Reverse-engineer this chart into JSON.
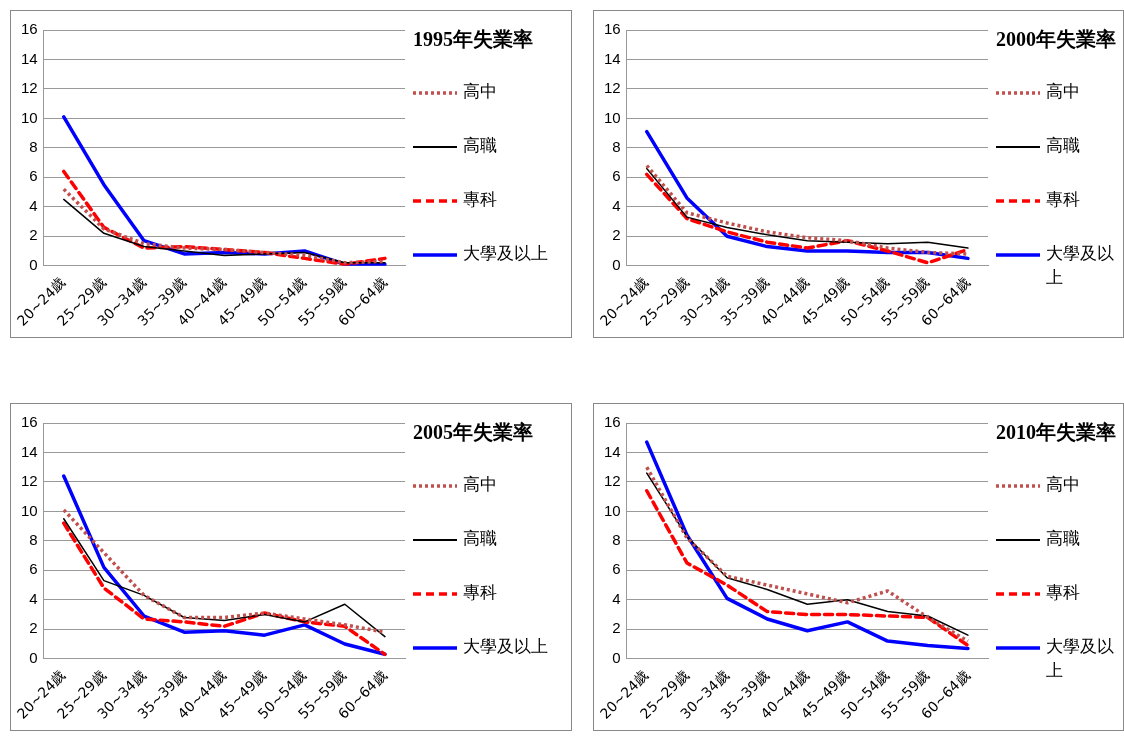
{
  "chart_data": [
    {
      "type": "line",
      "title": "1995年失業率",
      "categories": [
        "20~24歲",
        "25~29歲",
        "30~34歲",
        "35~39歲",
        "40~44歲",
        "45~49歲",
        "50~54歲",
        "55~59歲",
        "60~64歲"
      ],
      "ylim": [
        0,
        16
      ],
      "yticks": [
        0,
        2,
        4,
        6,
        8,
        10,
        12,
        14,
        16
      ],
      "grid": "y",
      "legend": "right",
      "marker": "none",
      "series": [
        {
          "name": "高中",
          "color": "#c0504d",
          "line_style": "dotted",
          "values": [
            5.2,
            2.5,
            1.5,
            1.2,
            1.1,
            0.9,
            0.7,
            0.2,
            0.3
          ]
        },
        {
          "name": "高職",
          "color": "#000000",
          "line_style": "solid",
          "values": [
            4.5,
            2.2,
            1.3,
            1.0,
            0.7,
            0.8,
            0.9,
            0.2,
            0.2
          ]
        },
        {
          "name": "專科",
          "color": "#ff0000",
          "line_style": "dashed",
          "values": [
            6.4,
            2.6,
            1.2,
            1.3,
            1.1,
            0.9,
            0.5,
            0.1,
            0.5
          ]
        },
        {
          "name": "大學及以上",
          "color": "#0000ff",
          "line_style": "solid",
          "values": [
            10.1,
            5.5,
            1.7,
            0.8,
            0.9,
            0.8,
            1.0,
            0.1,
            0.1
          ]
        }
      ]
    },
    {
      "type": "line",
      "title": "2000年失業率",
      "categories": [
        "20~24歲",
        "25~29歲",
        "30~34歲",
        "35~39歲",
        "40~44歲",
        "45~49歲",
        "50~54歲",
        "55~59歲",
        "60~64歲"
      ],
      "ylim": [
        0,
        16
      ],
      "yticks": [
        0,
        2,
        4,
        6,
        8,
        10,
        12,
        14,
        16
      ],
      "grid": "y",
      "legend": "right",
      "marker": "none",
      "series": [
        {
          "name": "高中",
          "color": "#c0504d",
          "line_style": "dotted",
          "values": [
            6.8,
            3.6,
            2.9,
            2.3,
            1.9,
            1.7,
            1.2,
            0.9,
            0.8
          ]
        },
        {
          "name": "高職",
          "color": "#000000",
          "line_style": "solid",
          "values": [
            6.6,
            3.3,
            2.6,
            2.1,
            1.7,
            1.6,
            1.5,
            1.6,
            1.2
          ]
        },
        {
          "name": "專科",
          "color": "#ff0000",
          "line_style": "dashed",
          "values": [
            6.2,
            3.2,
            2.3,
            1.6,
            1.2,
            1.7,
            1.0,
            0.2,
            1.1
          ]
        },
        {
          "name": "大學及以上",
          "color": "#0000ff",
          "line_style": "solid",
          "values": [
            9.1,
            4.6,
            2.0,
            1.3,
            1.0,
            1.0,
            0.9,
            0.9,
            0.5
          ]
        }
      ]
    },
    {
      "type": "line",
      "title": "2005年失業率",
      "categories": [
        "20~24歲",
        "25~29歲",
        "30~34歲",
        "35~39歲",
        "40~44歲",
        "45~49歲",
        "50~54歲",
        "55~59歲",
        "60~64歲"
      ],
      "ylim": [
        0,
        16
      ],
      "yticks": [
        0,
        2,
        4,
        6,
        8,
        10,
        12,
        14,
        16
      ],
      "grid": "y",
      "legend": "right",
      "marker": "none",
      "series": [
        {
          "name": "高中",
          "color": "#c0504d",
          "line_style": "dotted",
          "values": [
            10.1,
            7.2,
            4.3,
            2.8,
            2.8,
            3.1,
            2.7,
            2.3,
            1.8
          ]
        },
        {
          "name": "高職",
          "color": "#000000",
          "line_style": "solid",
          "values": [
            9.5,
            5.3,
            4.3,
            2.8,
            2.6,
            3.0,
            2.5,
            3.7,
            1.5
          ]
        },
        {
          "name": "專科",
          "color": "#ff0000",
          "line_style": "dashed",
          "values": [
            9.2,
            4.8,
            2.7,
            2.5,
            2.2,
            3.1,
            2.5,
            2.2,
            0.3
          ]
        },
        {
          "name": "大學及以上",
          "color": "#0000ff",
          "line_style": "solid",
          "values": [
            12.4,
            6.2,
            2.9,
            1.8,
            1.9,
            1.6,
            2.3,
            1.0,
            0.3
          ]
        }
      ]
    },
    {
      "type": "line",
      "title": "2010年失業率",
      "categories": [
        "20~24歲",
        "25~29歲",
        "30~34歲",
        "35~39歲",
        "40~44歲",
        "45~49歲",
        "50~54歲",
        "55~59歲",
        "60~64歲"
      ],
      "ylim": [
        0,
        16
      ],
      "yticks": [
        0,
        2,
        4,
        6,
        8,
        10,
        12,
        14,
        16
      ],
      "grid": "y",
      "legend": "right",
      "marker": "none",
      "series": [
        {
          "name": "高中",
          "color": "#c0504d",
          "line_style": "dotted",
          "values": [
            13.0,
            8.2,
            5.6,
            5.0,
            4.4,
            3.8,
            4.6,
            2.8,
            1.2
          ]
        },
        {
          "name": "高職",
          "color": "#000000",
          "line_style": "solid",
          "values": [
            12.6,
            8.3,
            5.5,
            4.7,
            3.7,
            4.0,
            3.2,
            2.9,
            1.6
          ]
        },
        {
          "name": "專科",
          "color": "#ff0000",
          "line_style": "dashed",
          "values": [
            11.4,
            6.5,
            5.0,
            3.2,
            3.0,
            3.0,
            2.9,
            2.8,
            0.9
          ]
        },
        {
          "name": "大學及以上",
          "color": "#0000ff",
          "line_style": "solid",
          "values": [
            14.7,
            8.4,
            4.1,
            2.7,
            1.9,
            2.5,
            1.2,
            0.9,
            0.7
          ]
        }
      ]
    }
  ]
}
